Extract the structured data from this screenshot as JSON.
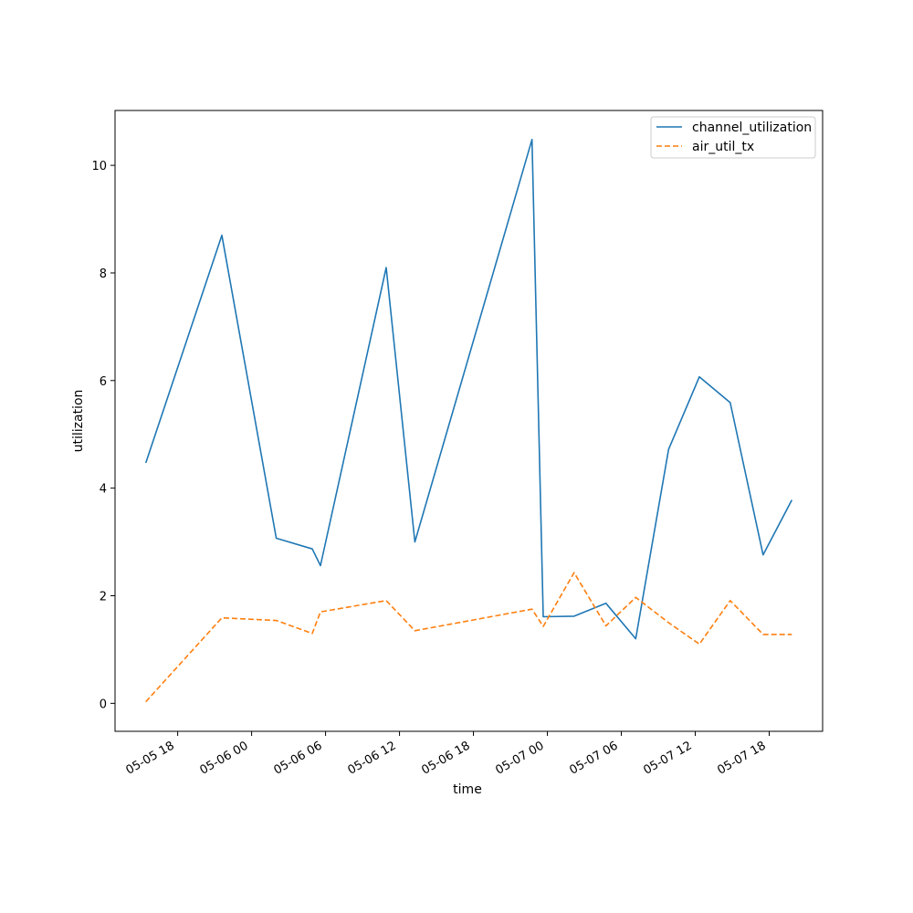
{
  "chart_data": {
    "type": "line",
    "title": "",
    "xlabel": "time",
    "ylabel": "utilization",
    "x": [
      "2024-05-05 15:25",
      "2024-05-05 21:35",
      "2024-05-06 02:00",
      "2024-05-06 04:55",
      "2024-05-06 05:35",
      "2024-05-06 10:55",
      "2024-05-06 13:15",
      "2024-05-06 22:45",
      "2024-05-06 23:40",
      "2024-05-07 02:10",
      "2024-05-07 04:45",
      "2024-05-07 07:10",
      "2024-05-07 09:50",
      "2024-05-07 12:20",
      "2024-05-07 14:50",
      "2024-05-07 17:30",
      "2024-05-07 19:50"
    ],
    "xticks": [
      {
        "at": "2024-05-05 18:00",
        "label": "05-05 18"
      },
      {
        "at": "2024-05-06 00:00",
        "label": "05-06 00"
      },
      {
        "at": "2024-05-06 06:00",
        "label": "05-06 06"
      },
      {
        "at": "2024-05-06 12:00",
        "label": "05-06 12"
      },
      {
        "at": "2024-05-06 18:00",
        "label": "05-06 18"
      },
      {
        "at": "2024-05-07 00:00",
        "label": "05-07 00"
      },
      {
        "at": "2024-05-07 06:00",
        "label": "05-07 06"
      },
      {
        "at": "2024-05-07 12:00",
        "label": "05-07 12"
      },
      {
        "at": "2024-05-07 18:00",
        "label": "05-07 18"
      }
    ],
    "xlim": [
      "2024-05-05 12:55",
      "2024-05-07 22:20"
    ],
    "ylim": [
      -0.52,
      11.02
    ],
    "yticks": [
      0,
      2,
      4,
      6,
      8,
      10
    ],
    "grid": false,
    "legend_position": "top-right",
    "series": [
      {
        "name": "channel_utilization",
        "color": "#1f77b4",
        "dash": "solid",
        "values": [
          4.47,
          8.7,
          3.07,
          2.87,
          2.56,
          8.1,
          3.0,
          10.48,
          1.61,
          1.62,
          1.86,
          1.2,
          4.72,
          6.07,
          5.59,
          2.76,
          3.78
        ]
      },
      {
        "name": "air_util_tx",
        "color": "#ff7f0e",
        "dash": "dashed",
        "values": [
          0.03,
          1.59,
          1.54,
          1.3,
          1.7,
          1.91,
          1.35,
          1.75,
          1.43,
          2.43,
          1.44,
          1.97,
          1.5,
          1.1,
          1.91,
          1.28,
          1.28
        ]
      }
    ]
  }
}
